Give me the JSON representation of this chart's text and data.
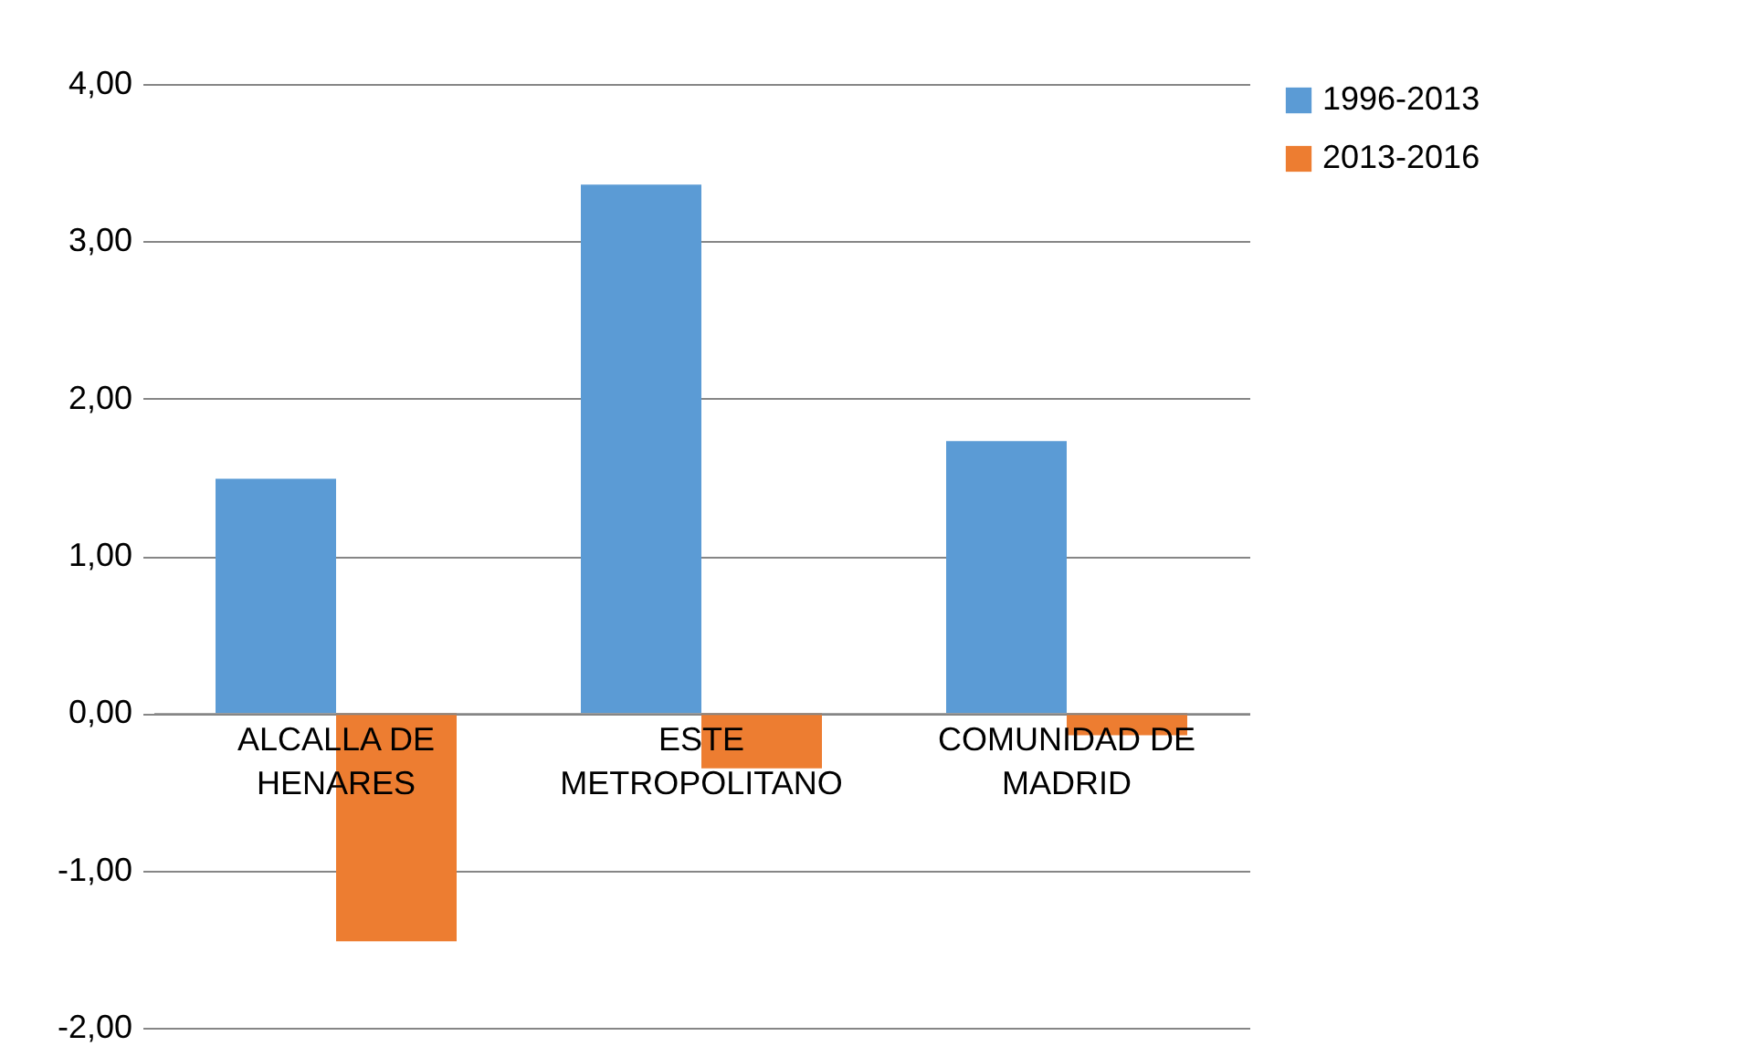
{
  "chart_data": {
    "type": "bar",
    "categories": [
      "ALCALLA DE HENARES",
      "ESTE METROPOLITANO",
      "COMUNIDAD DE MADRID"
    ],
    "series": [
      {
        "name": "1996-2013",
        "color": "#5b9bd5",
        "values": [
          1.49,
          3.36,
          1.73
        ]
      },
      {
        "name": "2013-2016",
        "color": "#ed7d31",
        "values": [
          -1.45,
          -0.35,
          -0.14
        ]
      }
    ],
    "ylim": [
      -2,
      4
    ],
    "yticks": [
      {
        "value": -2,
        "label": "-2,00"
      },
      {
        "value": -1,
        "label": "-1,00"
      },
      {
        "value": 0,
        "label": "0,00"
      },
      {
        "value": 1,
        "label": "1,00"
      },
      {
        "value": 2,
        "label": "2,00"
      },
      {
        "value": 3,
        "label": "3,00"
      },
      {
        "value": 4,
        "label": "4,00"
      }
    ],
    "grid": "y",
    "legend": "right"
  }
}
